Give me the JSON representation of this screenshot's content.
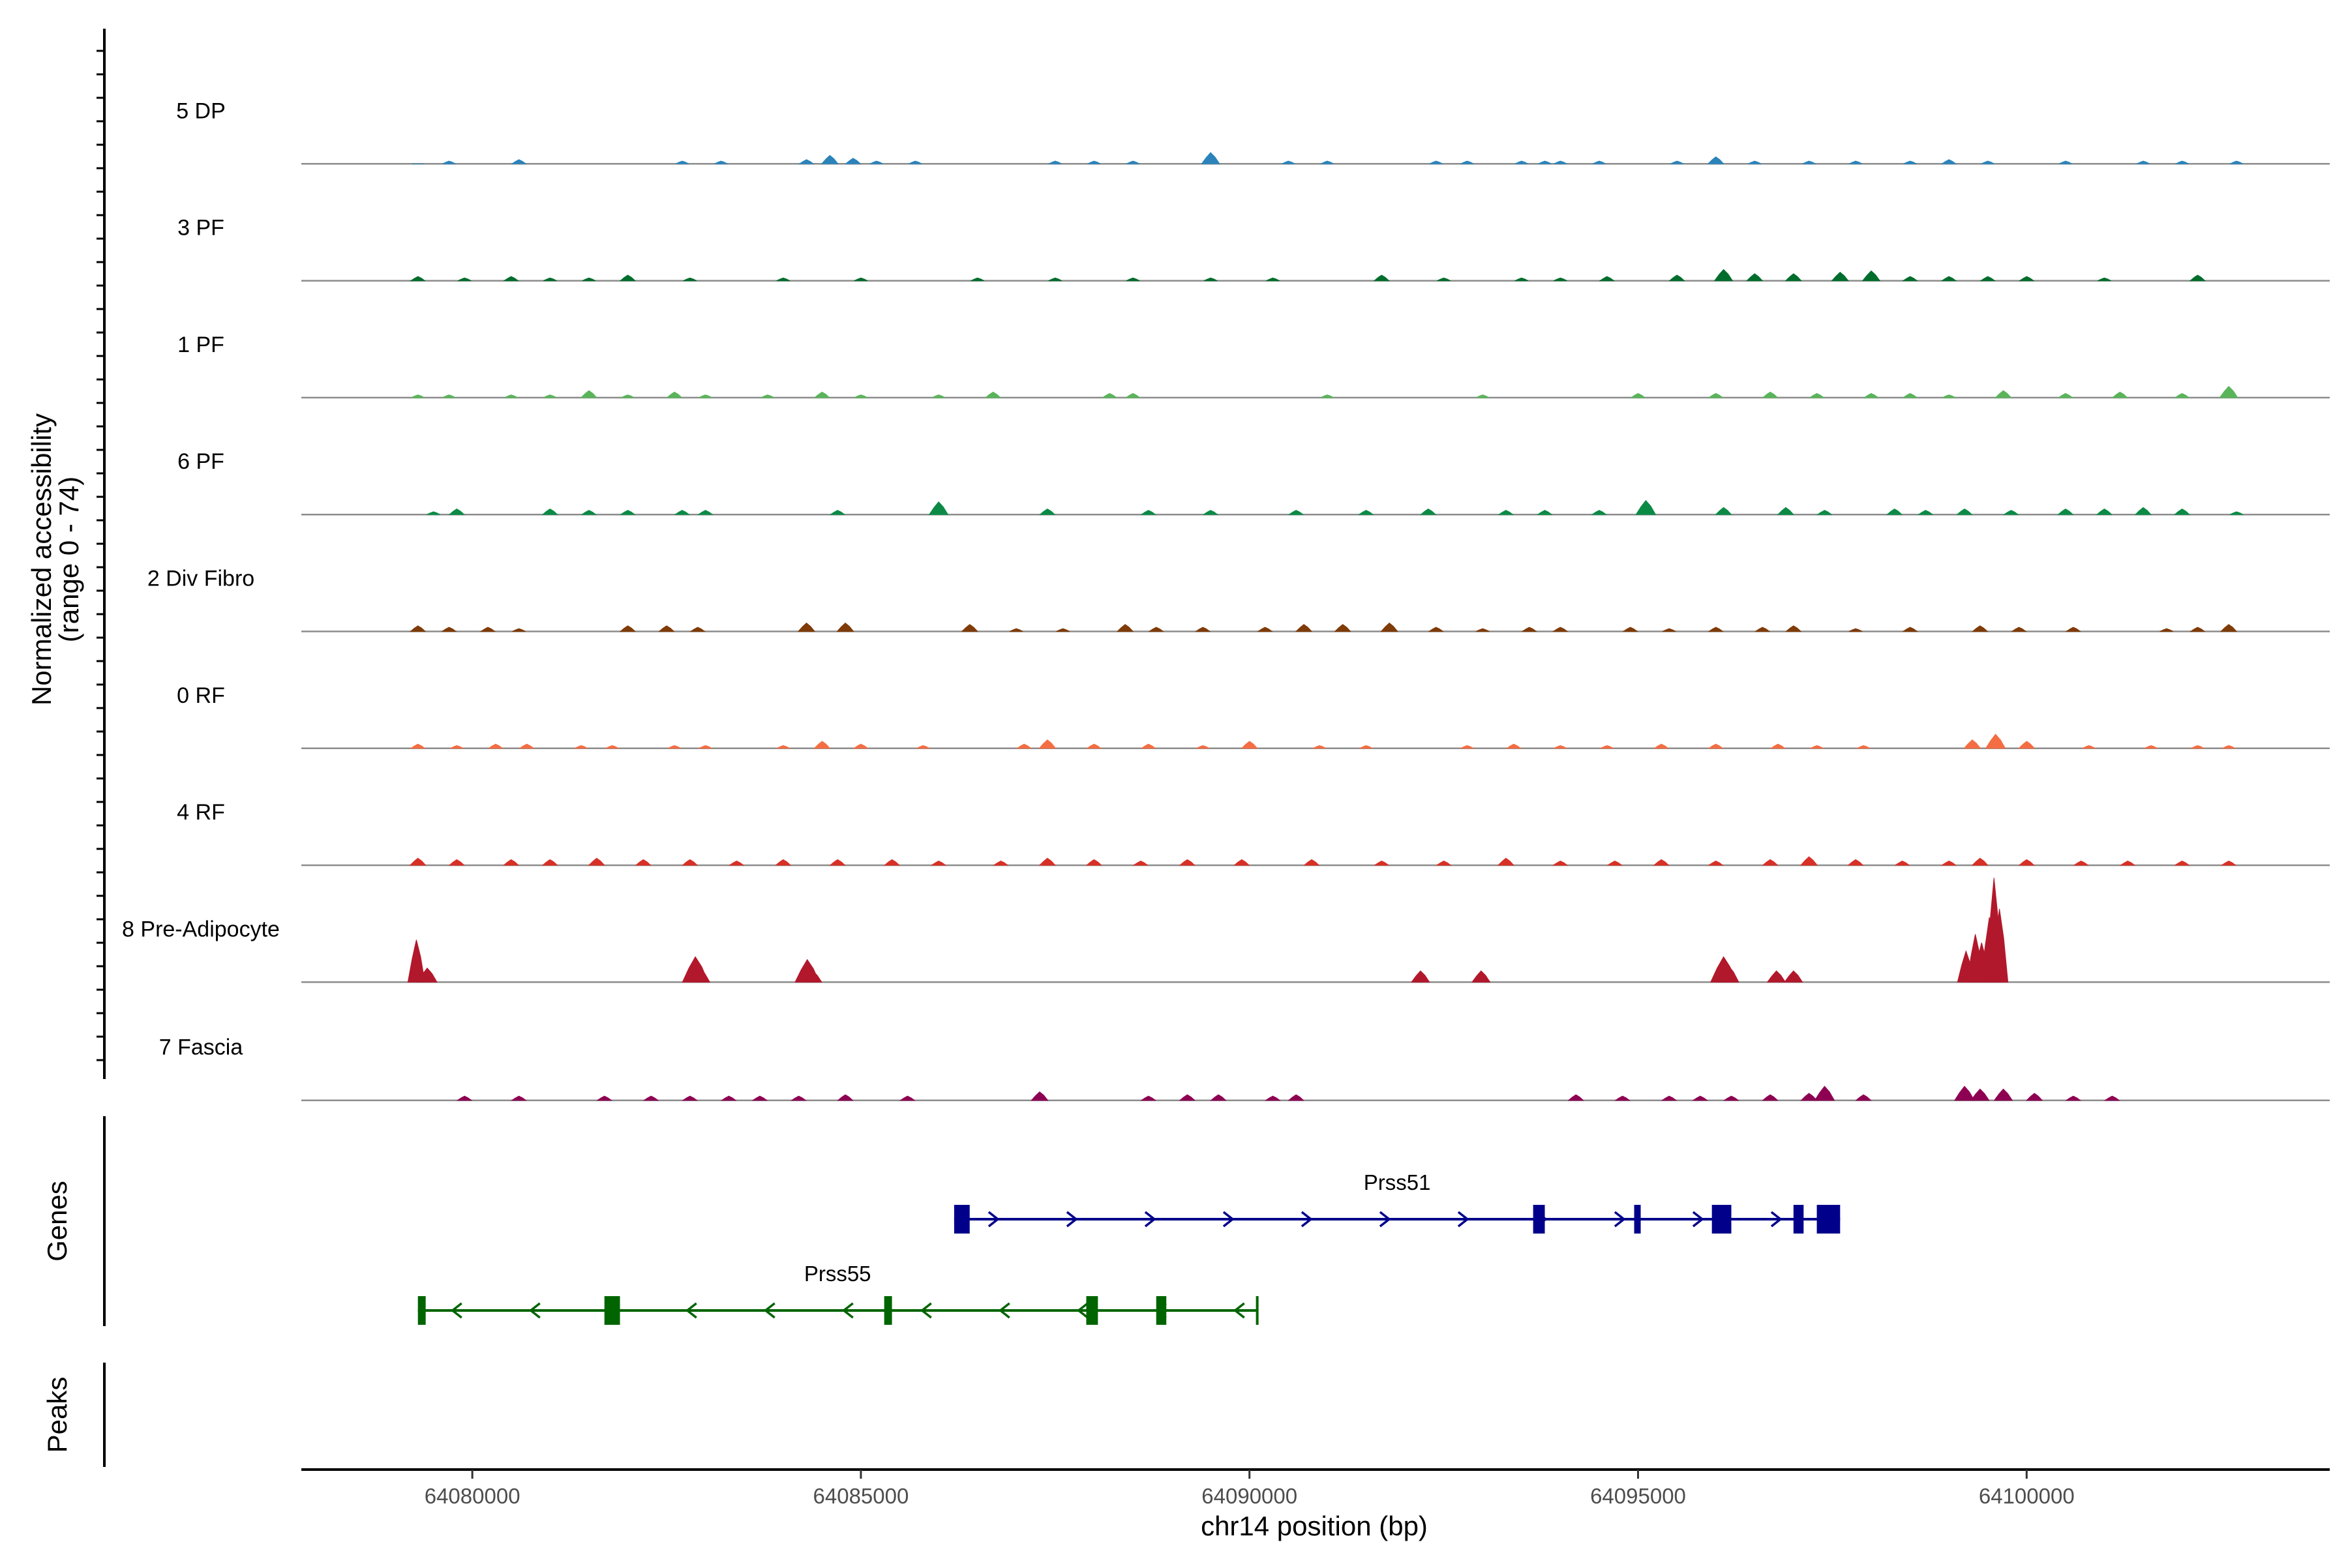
{
  "chart_data": {
    "type": "area",
    "title": "",
    "ylabel_line1": "Normalized accessibility",
    "ylabel_line2": "(range 0 - 74)",
    "ylim": [
      0,
      74
    ],
    "xlabel": "chr14 position (bp)",
    "xlim": [
      64077800,
      64103900
    ],
    "x_ticks": [
      64080000,
      64085000,
      64090000,
      64095000,
      64100000
    ],
    "x_tick_labels": [
      "64080000",
      "64085000",
      "64090000",
      "64095000",
      "64100000"
    ],
    "genes_label": "Genes",
    "peaks_label": "Peaks",
    "series": [
      {
        "name": "5 DP",
        "color": "#2b83ba",
        "points": [
          [
            64079300,
            0
          ],
          [
            64079700,
            2
          ],
          [
            64080600,
            3
          ],
          [
            64082700,
            2
          ],
          [
            64083200,
            2
          ],
          [
            64084300,
            3
          ],
          [
            64084600,
            6
          ],
          [
            64084900,
            4
          ],
          [
            64085200,
            2
          ],
          [
            64085700,
            2
          ],
          [
            64087500,
            2
          ],
          [
            64088000,
            2
          ],
          [
            64088500,
            2
          ],
          [
            64089500,
            8
          ],
          [
            64090500,
            2
          ],
          [
            64091000,
            2
          ],
          [
            64092400,
            2
          ],
          [
            64092800,
            2
          ],
          [
            64093500,
            2
          ],
          [
            64093800,
            2
          ],
          [
            64094000,
            2
          ],
          [
            64094500,
            2
          ],
          [
            64095500,
            2
          ],
          [
            64096000,
            5
          ],
          [
            64096500,
            2
          ],
          [
            64097200,
            2
          ],
          [
            64097800,
            2
          ],
          [
            64098500,
            2
          ],
          [
            64099000,
            3
          ],
          [
            64099500,
            2
          ],
          [
            64100500,
            2
          ],
          [
            64101500,
            2
          ],
          [
            64102000,
            2
          ],
          [
            64102700,
            2
          ]
        ]
      },
      {
        "name": "3 PF",
        "color": "#006d2c",
        "points": [
          [
            64079300,
            3
          ],
          [
            64079900,
            2
          ],
          [
            64080500,
            3
          ],
          [
            64081000,
            2
          ],
          [
            64081500,
            2
          ],
          [
            64082000,
            4
          ],
          [
            64082800,
            2
          ],
          [
            64084000,
            2
          ],
          [
            64085000,
            2
          ],
          [
            64086500,
            2
          ],
          [
            64087500,
            2
          ],
          [
            64088500,
            2
          ],
          [
            64089500,
            2
          ],
          [
            64090300,
            2
          ],
          [
            64091700,
            4
          ],
          [
            64092500,
            2
          ],
          [
            64093500,
            2
          ],
          [
            64094000,
            2
          ],
          [
            64094600,
            3
          ],
          [
            64095500,
            4
          ],
          [
            64096100,
            8
          ],
          [
            64096500,
            5
          ],
          [
            64097000,
            5
          ],
          [
            64097600,
            6
          ],
          [
            64098000,
            7
          ],
          [
            64098500,
            3
          ],
          [
            64099000,
            3
          ],
          [
            64099500,
            3
          ],
          [
            64100000,
            3
          ],
          [
            64101000,
            2
          ],
          [
            64102200,
            4
          ]
        ]
      },
      {
        "name": "1 PF",
        "color": "#5ab45a",
        "points": [
          [
            64079300,
            2
          ],
          [
            64079700,
            2
          ],
          [
            64080500,
            2
          ],
          [
            64081000,
            2
          ],
          [
            64081500,
            5
          ],
          [
            64082000,
            2
          ],
          [
            64082600,
            4
          ],
          [
            64083000,
            2
          ],
          [
            64083800,
            2
          ],
          [
            64084500,
            4
          ],
          [
            64085000,
            2
          ],
          [
            64086000,
            2
          ],
          [
            64086700,
            4
          ],
          [
            64088200,
            3
          ],
          [
            64088500,
            3
          ],
          [
            64091000,
            2
          ],
          [
            64093000,
            2
          ],
          [
            64095000,
            3
          ],
          [
            64096000,
            3
          ],
          [
            64096700,
            4
          ],
          [
            64097300,
            3
          ],
          [
            64098000,
            3
          ],
          [
            64098500,
            3
          ],
          [
            64099000,
            2
          ],
          [
            64099700,
            5
          ],
          [
            64100500,
            3
          ],
          [
            64101200,
            4
          ],
          [
            64102000,
            3
          ],
          [
            64102600,
            8
          ]
        ]
      },
      {
        "name": "6 PF",
        "color": "#0b8a46",
        "points": [
          [
            64079500,
            2
          ],
          [
            64079800,
            4
          ],
          [
            64081000,
            4
          ],
          [
            64081500,
            3
          ],
          [
            64082000,
            3
          ],
          [
            64082700,
            3
          ],
          [
            64083000,
            3
          ],
          [
            64084700,
            3
          ],
          [
            64086000,
            9
          ],
          [
            64087400,
            4
          ],
          [
            64088700,
            3
          ],
          [
            64089500,
            3
          ],
          [
            64090600,
            3
          ],
          [
            64091500,
            3
          ],
          [
            64092300,
            4
          ],
          [
            64093300,
            3
          ],
          [
            64093800,
            3
          ],
          [
            64094500,
            3
          ],
          [
            64095100,
            10
          ],
          [
            64096100,
            5
          ],
          [
            64096900,
            5
          ],
          [
            64097400,
            3
          ],
          [
            64098300,
            4
          ],
          [
            64098700,
            3
          ],
          [
            64099200,
            4
          ],
          [
            64099800,
            3
          ],
          [
            64100500,
            4
          ],
          [
            64101000,
            4
          ],
          [
            64101500,
            5
          ],
          [
            64102000,
            4
          ],
          [
            64102700,
            2
          ]
        ]
      },
      {
        "name": "2 Div Fibro",
        "color": "#7f3b08",
        "points": [
          [
            64079300,
            4
          ],
          [
            64079700,
            3
          ],
          [
            64080200,
            3
          ],
          [
            64080600,
            2
          ],
          [
            64082000,
            4
          ],
          [
            64082500,
            4
          ],
          [
            64082900,
            3
          ],
          [
            64084300,
            6
          ],
          [
            64084800,
            6
          ],
          [
            64086400,
            5
          ],
          [
            64087000,
            2
          ],
          [
            64087600,
            2
          ],
          [
            64088400,
            5
          ],
          [
            64088800,
            3
          ],
          [
            64089400,
            3
          ],
          [
            64090200,
            3
          ],
          [
            64090700,
            5
          ],
          [
            64091200,
            5
          ],
          [
            64091800,
            6
          ],
          [
            64092400,
            3
          ],
          [
            64093000,
            2
          ],
          [
            64093600,
            3
          ],
          [
            64094000,
            3
          ],
          [
            64094900,
            3
          ],
          [
            64095400,
            2
          ],
          [
            64096000,
            3
          ],
          [
            64096600,
            3
          ],
          [
            64097000,
            4
          ],
          [
            64097800,
            2
          ],
          [
            64098500,
            3
          ],
          [
            64099400,
            4
          ],
          [
            64099900,
            3
          ],
          [
            64100600,
            3
          ],
          [
            64101800,
            2
          ],
          [
            64102200,
            3
          ],
          [
            64102600,
            5
          ]
        ]
      },
      {
        "name": "0 RF",
        "color": "#f46d43",
        "points": [
          [
            64079300,
            3
          ],
          [
            64079800,
            2
          ],
          [
            64080300,
            3
          ],
          [
            64080700,
            3
          ],
          [
            64081400,
            2
          ],
          [
            64081800,
            2
          ],
          [
            64082600,
            2
          ],
          [
            64083000,
            2
          ],
          [
            64084000,
            2
          ],
          [
            64084500,
            5
          ],
          [
            64085000,
            3
          ],
          [
            64085800,
            2
          ],
          [
            64087100,
            3
          ],
          [
            64087400,
            6
          ],
          [
            64088000,
            3
          ],
          [
            64088700,
            3
          ],
          [
            64089400,
            2
          ],
          [
            64090000,
            5
          ],
          [
            64090900,
            2
          ],
          [
            64091500,
            2
          ],
          [
            64092800,
            2
          ],
          [
            64093400,
            3
          ],
          [
            64094000,
            2
          ],
          [
            64094600,
            2
          ],
          [
            64095300,
            3
          ],
          [
            64096000,
            3
          ],
          [
            64096800,
            3
          ],
          [
            64097300,
            2
          ],
          [
            64097900,
            2
          ],
          [
            64099300,
            6
          ],
          [
            64099600,
            10
          ],
          [
            64100000,
            5
          ],
          [
            64100800,
            2
          ],
          [
            64101600,
            2
          ],
          [
            64102200,
            2
          ],
          [
            64102600,
            2
          ]
        ]
      },
      {
        "name": "4 RF",
        "color": "#d73027",
        "points": [
          [
            64079300,
            5
          ],
          [
            64079800,
            4
          ],
          [
            64080500,
            4
          ],
          [
            64081000,
            4
          ],
          [
            64081600,
            5
          ],
          [
            64082200,
            4
          ],
          [
            64082800,
            4
          ],
          [
            64083400,
            3
          ],
          [
            64084000,
            4
          ],
          [
            64084700,
            4
          ],
          [
            64085400,
            4
          ],
          [
            64086000,
            3
          ],
          [
            64086800,
            3
          ],
          [
            64087400,
            5
          ],
          [
            64088000,
            4
          ],
          [
            64088600,
            3
          ],
          [
            64089200,
            4
          ],
          [
            64089900,
            4
          ],
          [
            64090800,
            4
          ],
          [
            64091700,
            3
          ],
          [
            64092500,
            3
          ],
          [
            64093300,
            5
          ],
          [
            64094000,
            3
          ],
          [
            64094700,
            3
          ],
          [
            64095300,
            4
          ],
          [
            64096000,
            3
          ],
          [
            64096700,
            4
          ],
          [
            64097200,
            6
          ],
          [
            64097800,
            4
          ],
          [
            64098400,
            3
          ],
          [
            64099000,
            3
          ],
          [
            64099400,
            5
          ],
          [
            64100000,
            4
          ],
          [
            64100700,
            3
          ],
          [
            64101300,
            3
          ],
          [
            64102000,
            3
          ],
          [
            64102600,
            3
          ]
        ]
      },
      {
        "name": "8 Pre-Adipocyte",
        "color": "#b2182b",
        "points": [
          [
            64079280,
            30
          ],
          [
            64079420,
            10
          ],
          [
            64082870,
            18
          ],
          [
            64082930,
            10
          ],
          [
            64084310,
            16
          ],
          [
            64084380,
            8
          ],
          [
            64092200,
            8
          ],
          [
            64092980,
            8
          ],
          [
            64096100,
            18
          ],
          [
            64096160,
            12
          ],
          [
            64096780,
            8
          ],
          [
            64097000,
            8
          ],
          [
            64099220,
            22
          ],
          [
            64099340,
            34
          ],
          [
            64099420,
            28
          ],
          [
            64099520,
            46
          ],
          [
            64099580,
            74
          ],
          [
            64099650,
            52
          ]
        ]
      },
      {
        "name": "7 Fascia",
        "color": "#8e0152",
        "points": [
          [
            64079900,
            3
          ],
          [
            64080600,
            3
          ],
          [
            64081700,
            3
          ],
          [
            64082300,
            3
          ],
          [
            64082800,
            3
          ],
          [
            64083300,
            3
          ],
          [
            64083700,
            3
          ],
          [
            64084200,
            3
          ],
          [
            64084800,
            4
          ],
          [
            64085600,
            3
          ],
          [
            64087300,
            6
          ],
          [
            64088700,
            3
          ],
          [
            64089200,
            4
          ],
          [
            64089600,
            4
          ],
          [
            64090300,
            3
          ],
          [
            64090600,
            4
          ],
          [
            64094200,
            4
          ],
          [
            64094800,
            3
          ],
          [
            64095400,
            3
          ],
          [
            64095800,
            3
          ],
          [
            64096200,
            3
          ],
          [
            64096700,
            4
          ],
          [
            64097200,
            5
          ],
          [
            64097400,
            10
          ],
          [
            64097900,
            4
          ],
          [
            64099200,
            10
          ],
          [
            64099400,
            8
          ],
          [
            64099700,
            8
          ],
          [
            64100100,
            5
          ],
          [
            64100600,
            3
          ],
          [
            64101100,
            3
          ]
        ]
      }
    ],
    "genes": [
      {
        "name": "Prss51",
        "color": "#00008b",
        "start": 64086200,
        "end": 64097600,
        "strand": "+",
        "exons": [
          [
            64086200,
            64086400
          ],
          [
            64093650,
            64093800
          ],
          [
            64094950,
            64095030
          ],
          [
            64095950,
            64096200
          ],
          [
            64097000,
            64097130
          ],
          [
            64097300,
            64097600
          ]
        ]
      },
      {
        "name": "Prss55",
        "color": "#006400",
        "start": 64079300,
        "end": 64090100,
        "strand": "-",
        "exons": [
          [
            64079300,
            64079400
          ],
          [
            64081700,
            64081900
          ],
          [
            64085300,
            64085400
          ],
          [
            64087900,
            64088050
          ],
          [
            64088800,
            64088930
          ]
        ]
      }
    ]
  }
}
